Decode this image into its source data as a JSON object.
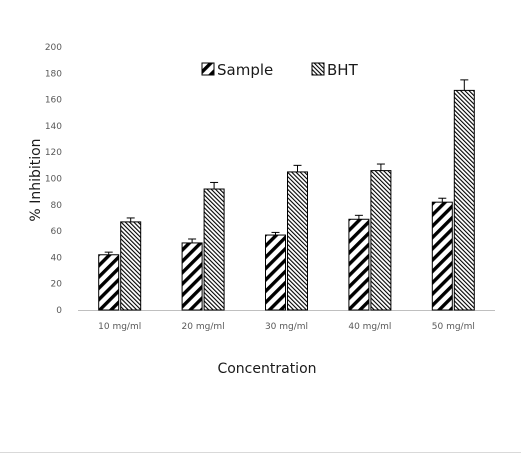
{
  "chart_data": {
    "type": "bar",
    "xlabel": "Concentration",
    "ylabel": "% Inhibition",
    "ylim": [
      0,
      200
    ],
    "yticks": [
      0,
      20,
      40,
      60,
      80,
      100,
      120,
      140,
      160,
      180,
      200
    ],
    "categories": [
      "10 mg/ml",
      "20 mg/ml",
      "30 mg/ml",
      "40 mg/ml",
      "50 mg/ml"
    ],
    "series": [
      {
        "name": "Sample",
        "pattern": "wide-diagonal-stripes",
        "values": [
          42,
          51,
          57,
          69,
          82
        ],
        "errors": [
          2,
          3,
          2,
          3,
          3
        ]
      },
      {
        "name": "BHT",
        "pattern": "fine-diagonal-hatch",
        "values": [
          67,
          92,
          105,
          106,
          167
        ],
        "errors": [
          3,
          5,
          5,
          5,
          8
        ]
      }
    ],
    "legend_position": "top-center",
    "grid": false,
    "colors": {
      "bar_stroke": "#000000",
      "axis": "#bfbfbf",
      "text": "#595959"
    }
  }
}
